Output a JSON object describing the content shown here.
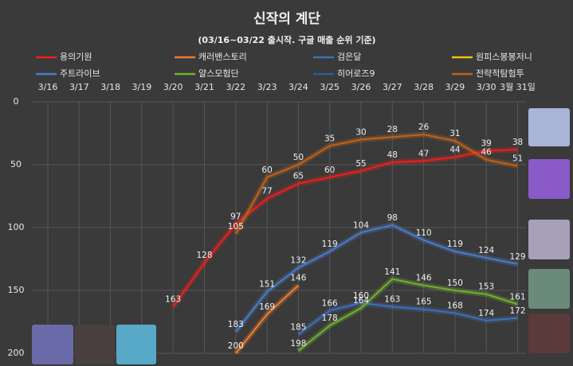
{
  "chart_data": {
    "type": "line",
    "title": "신작의 계단",
    "subtitle": "(03/16~03/22 출시작. 구글 매출 순위 기준)",
    "categories": [
      "3/16",
      "3/17",
      "3/18",
      "3/19",
      "3/20",
      "3/21",
      "3/22",
      "3/23",
      "3/24",
      "3/25",
      "3/26",
      "3/27",
      "3/28",
      "3/29",
      "3/30",
      "3월 31일"
    ],
    "ylim": [
      0,
      200
    ],
    "yticks": [
      0,
      50,
      100,
      150,
      200
    ],
    "y_inverted": true,
    "grid": true,
    "series": [
      {
        "name": "용의기원",
        "color": "#e8201e",
        "values": [
          null,
          null,
          null,
          null,
          163,
          128,
          97,
          77,
          65,
          60,
          55,
          48,
          47,
          44,
          39,
          38
        ]
      },
      {
        "name": "캐러밴스토리",
        "color": "#f07a30",
        "values": [
          null,
          null,
          null,
          null,
          null,
          null,
          200,
          169,
          146,
          null,
          null,
          null,
          null,
          null,
          null,
          null
        ]
      },
      {
        "name": "검은달",
        "color": "#3f6fb8",
        "values": [
          null,
          null,
          null,
          null,
          null,
          null,
          null,
          null,
          185,
          166,
          160,
          163,
          165,
          168,
          174,
          172
        ]
      },
      {
        "name": "원피스봉봉저니",
        "color": "#f0c010",
        "values": [
          null,
          null,
          null,
          null,
          null,
          null,
          null,
          null,
          null,
          null,
          null,
          null,
          null,
          null,
          null,
          null
        ]
      },
      {
        "name": "주트라이브",
        "color": "#4a7cc8",
        "values": [
          null,
          null,
          null,
          null,
          null,
          null,
          183,
          151,
          132,
          119,
          104,
          98,
          110,
          119,
          124,
          129
        ]
      },
      {
        "name": "얄스모험단",
        "color": "#70b030",
        "values": [
          null,
          null,
          null,
          null,
          null,
          null,
          null,
          null,
          198,
          178,
          164,
          141,
          146,
          150,
          153,
          161
        ]
      },
      {
        "name": "히어로즈9",
        "color": "#2f5c9a",
        "values": [
          null,
          null,
          null,
          null,
          null,
          null,
          null,
          null,
          null,
          null,
          null,
          null,
          null,
          null,
          null,
          null
        ]
      },
      {
        "name": "전략적탐험투",
        "color": "#c0621c",
        "values": [
          null,
          null,
          null,
          null,
          null,
          null,
          105,
          60,
          50,
          35,
          30,
          28,
          26,
          31,
          46,
          51
        ]
      }
    ]
  }
}
